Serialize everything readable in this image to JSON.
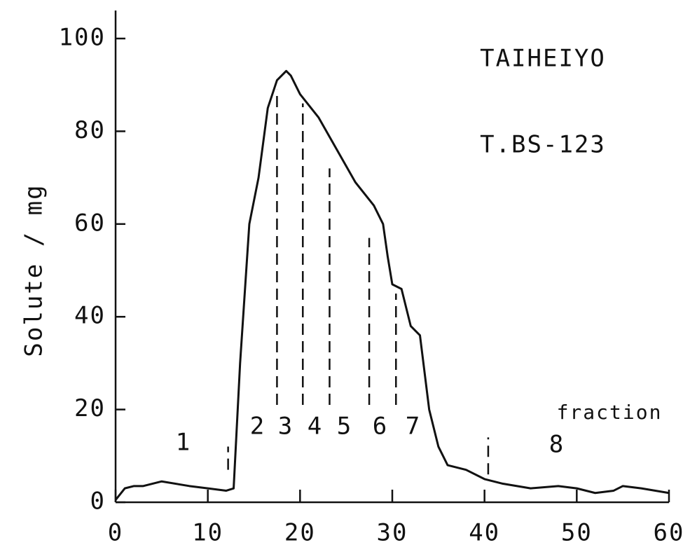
{
  "chart_data": {
    "type": "line",
    "ylabel": "Solute / mg",
    "annotations": [
      "TAIHEIYO",
      "T.BS-123",
      "fraction"
    ],
    "fraction_labels": [
      "1",
      "2",
      "3",
      "4",
      "5",
      "6",
      "7",
      "8"
    ],
    "fraction_cuts": [
      {
        "x": 12.2,
        "y": [
          7,
          12
        ]
      },
      {
        "x": 17.5,
        "y": [
          21,
          89
        ]
      },
      {
        "x": 20.3,
        "y": [
          21,
          86
        ]
      },
      {
        "x": 23.2,
        "y": [
          21,
          72
        ]
      },
      {
        "x": 27.5,
        "y": [
          21,
          57
        ]
      },
      {
        "x": 30.4,
        "y": [
          21,
          45
        ]
      },
      {
        "x": 40.4,
        "y": [
          6,
          14
        ]
      }
    ],
    "x": [
      0,
      1,
      2,
      3,
      5,
      8,
      10,
      12,
      12.8,
      13.5,
      14.5,
      15.5,
      16.5,
      17.5,
      18.5,
      19,
      20,
      22,
      24,
      26,
      28,
      29,
      29.5,
      30,
      31,
      32,
      33,
      34,
      35,
      36,
      38,
      40,
      42,
      45,
      48,
      50,
      52,
      54,
      55,
      57,
      60
    ],
    "series": [
      {
        "color": "#111111",
        "values": [
          0.5,
          3,
          3.5,
          3.5,
          4.5,
          3.5,
          3,
          2.5,
          3,
          30,
          60,
          70,
          85,
          91,
          93,
          92,
          88,
          83,
          76,
          69,
          64,
          60,
          53,
          47,
          46,
          38,
          36,
          20,
          12,
          8,
          7,
          5,
          4,
          3,
          3.5,
          3,
          2,
          2.5,
          3.5,
          3,
          2
        ]
      }
    ],
    "xlim": [
      0,
      60
    ],
    "xticks": [
      0,
      10,
      20,
      30,
      40,
      50,
      60
    ],
    "ylim": [
      0,
      100
    ],
    "yticks": [
      0,
      20,
      40,
      60,
      80,
      100
    ]
  }
}
